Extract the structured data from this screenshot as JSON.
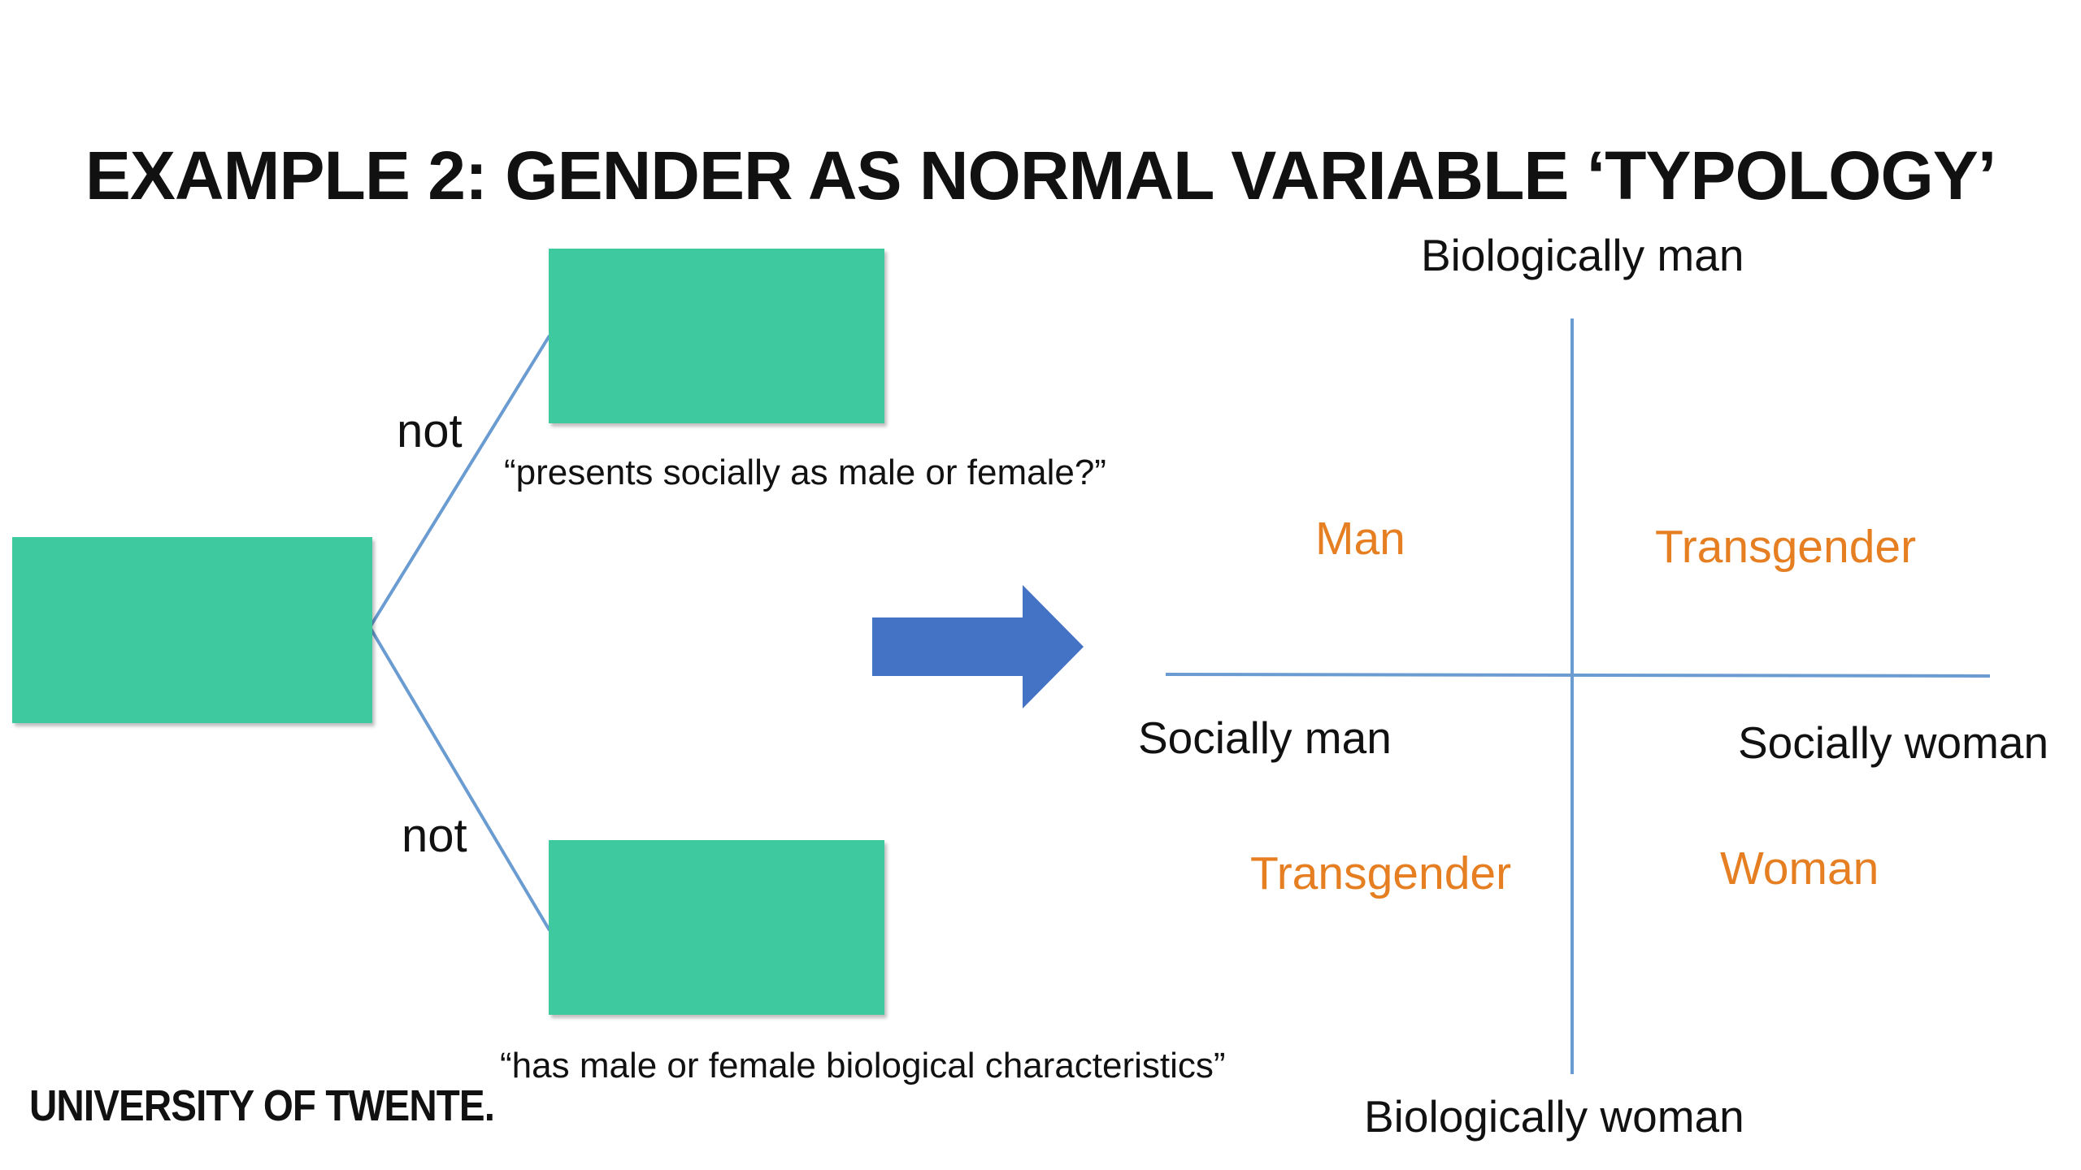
{
  "title": "EXAMPLE 2: GENDER AS NORMAL VARIABLE ‘TYPOLOGY’",
  "tree": {
    "branch_top_label": "not",
    "branch_bottom_label": "not",
    "top_question": "“presents socially as male or female?”",
    "bottom_question": "“has male or female biological characteristics”",
    "box_color": "#3ec99f",
    "line_color": "#6a9bd1"
  },
  "arrow": {
    "color": "#4472c4",
    "icon": "right-arrow-icon"
  },
  "typology": {
    "axis_top": "Biologically man",
    "axis_bottom": "Biologically woman",
    "axis_left": "Socially man",
    "axis_right": "Socially woman",
    "quadrant_top_left": "Man",
    "quadrant_top_right": "Transgender",
    "quadrant_bottom_left": "Transgender",
    "quadrant_bottom_right": "Woman",
    "category_color": "#e67e22"
  },
  "footer": {
    "logo": "UNIVERSITY OF TWENTE."
  }
}
